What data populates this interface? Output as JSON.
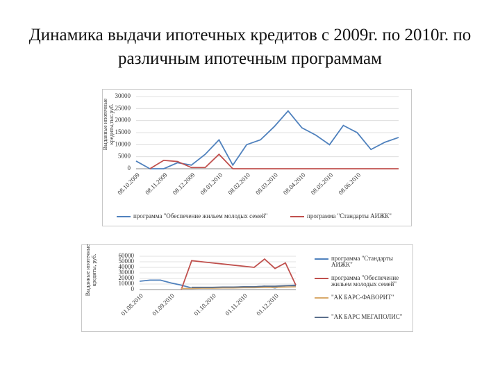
{
  "title": "Динамика выдачи ипотечных кредитов с 2009г. по 2010г. по различным ипотечным программам",
  "chart_data": [
    {
      "type": "line",
      "y_label": "Выданные ипотечные кредиты,тыс.руб.",
      "categories": [
        "08.10.2009",
        null,
        "08.11.2009",
        null,
        "08.12.2009",
        null,
        "08.01.2010",
        null,
        "08.02.2010",
        null,
        "08.03.2010",
        null,
        "08.04.2010",
        null,
        "08.05.2010",
        null,
        "08.06.2010",
        null,
        null,
        null
      ],
      "series": [
        {
          "name": "программа \"Обеспечение жильем молодых семей\"",
          "color": "#4f81bd",
          "values": [
            3200,
            0,
            0,
            2500,
            1500,
            6000,
            12000,
            1500,
            10000,
            12000,
            17500,
            24000,
            17000,
            14000,
            10000,
            18000,
            15000,
            8000,
            11000,
            13000
          ]
        },
        {
          "name": "программа \"Стандарты АИЖК\"",
          "color": "#c0504d",
          "values": [
            null,
            0,
            3500,
            3000,
            500,
            500,
            6000,
            0,
            0,
            0,
            0,
            0,
            0,
            0,
            0,
            0,
            0,
            0,
            0,
            0
          ]
        }
      ],
      "ylim": [
        0,
        30000
      ],
      "yticks": [
        0,
        5000,
        10000,
        15000,
        20000,
        25000,
        30000
      ],
      "legend": "bottom"
    },
    {
      "type": "line",
      "y_label": "Выданные ипотечные кредиты, руб.",
      "categories": [
        "01.08.2010",
        null,
        null,
        "01.09.2010",
        null,
        null,
        null,
        "01.10.2010",
        null,
        null,
        "01.11.2010",
        null,
        null,
        "01.12.2010",
        null,
        null
      ],
      "series": [
        {
          "name": "программа \"Стандарты АИЖК\"",
          "color": "#4f81bd",
          "values": [
            15000,
            17000,
            17000,
            12000,
            8000,
            3000,
            3000,
            3000,
            4000,
            4000,
            5000,
            5000,
            6000,
            3000,
            7000,
            8000
          ]
        },
        {
          "name": "программа \"Обеспечение жильем молодых семей\"",
          "color": "#c0504d",
          "values": [
            null,
            null,
            null,
            null,
            0,
            52000,
            50000,
            48000,
            46000,
            44000,
            42000,
            40000,
            55000,
            38000,
            48000,
            8000
          ]
        },
        {
          "name": "\"АК БАРС-ФАВОРИТ\"",
          "color": "#d8a96a",
          "values": [
            null,
            null,
            null,
            null,
            2000,
            2000,
            2500,
            2500,
            3000,
            3000,
            3500,
            3500,
            4000,
            4000,
            4500,
            5000
          ]
        },
        {
          "name": "\"АК БАРС МЕГАПОЛИС\"",
          "color": "#5a6f8c",
          "values": [
            null,
            null,
            null,
            null,
            null,
            4000,
            4000,
            4000,
            4500,
            4500,
            5000,
            5000,
            6000,
            6000,
            7000,
            7000
          ]
        }
      ],
      "ylim": [
        0,
        60000
      ],
      "yticks": [
        0,
        10000,
        20000,
        30000,
        40000,
        50000,
        60000
      ],
      "legend": "right"
    }
  ]
}
